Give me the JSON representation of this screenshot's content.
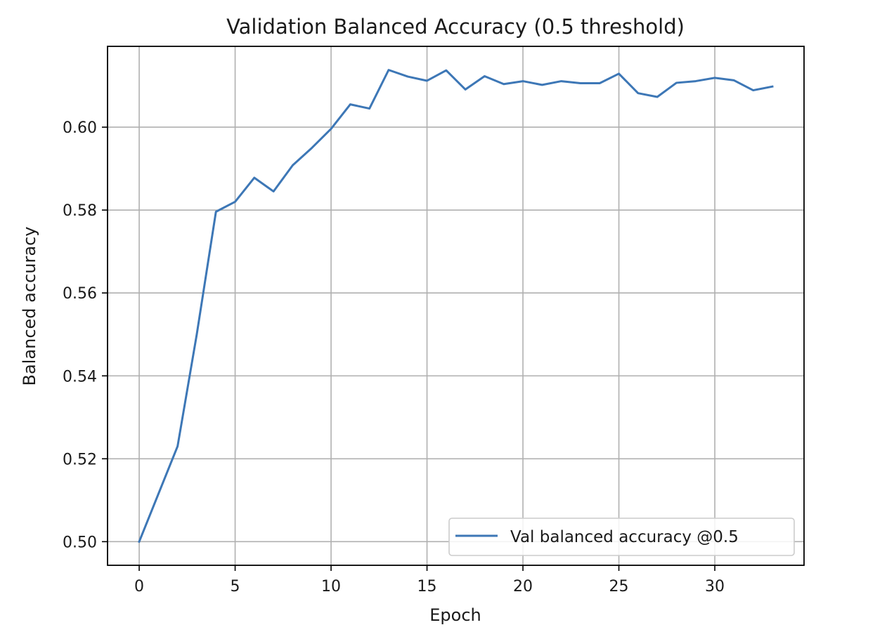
{
  "chart_data": {
    "type": "line",
    "title": "Validation Balanced Accuracy (0.5 threshold)",
    "xlabel": "Epoch",
    "ylabel": "Balanced accuracy",
    "xlim": [
      -1.65,
      34.65
    ],
    "ylim": [
      0.4943,
      0.6195
    ],
    "xticks": [
      0,
      5,
      10,
      15,
      20,
      25,
      30
    ],
    "yticks": [
      0.5,
      0.52,
      0.54,
      0.56,
      0.58,
      0.6
    ],
    "xtick_labels": [
      "0",
      "5",
      "10",
      "15",
      "20",
      "25",
      "30"
    ],
    "ytick_labels": [
      "0.50",
      "0.52",
      "0.54",
      "0.56",
      "0.58",
      "0.60"
    ],
    "grid": true,
    "legend_position": "lower-right",
    "series": [
      {
        "name": "Val balanced accuracy @0.5",
        "color": "#3d77b6",
        "x": [
          0,
          1,
          2,
          3,
          4,
          5,
          6,
          7,
          8,
          9,
          10,
          11,
          12,
          13,
          14,
          15,
          16,
          17,
          18,
          19,
          20,
          21,
          22,
          23,
          24,
          25,
          26,
          27,
          28,
          29,
          30,
          31,
          32,
          33
        ],
        "y": [
          0.5,
          0.5115,
          0.523,
          0.55,
          0.5796,
          0.582,
          0.5878,
          0.5845,
          0.5908,
          0.595,
          0.5996,
          0.6055,
          0.6045,
          0.6138,
          0.6122,
          0.6112,
          0.6137,
          0.6091,
          0.6123,
          0.6104,
          0.6111,
          0.6102,
          0.6111,
          0.6106,
          0.6106,
          0.6129,
          0.6082,
          0.6073,
          0.6107,
          0.6111,
          0.6119,
          0.6113,
          0.6089,
          0.6098
        ]
      }
    ]
  }
}
